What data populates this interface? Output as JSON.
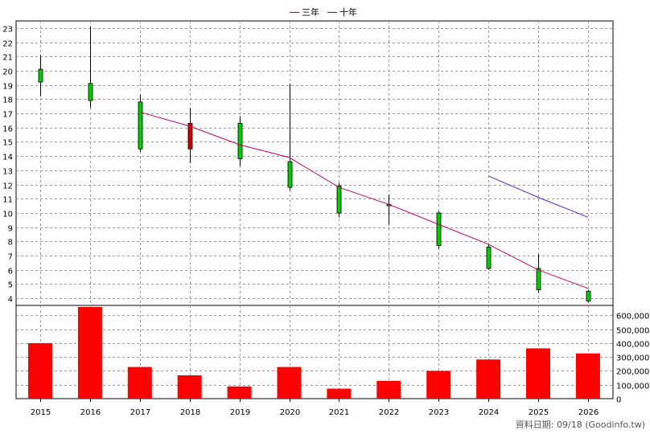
{
  "legend": [
    {
      "label": "三年",
      "color": "#cc0066"
    },
    {
      "label": "十年",
      "color": "#5522cc"
    }
  ],
  "footer": "資料日期: 09/18  (Goodinfo.tw)",
  "chart_data": [
    {
      "type": "candlestick",
      "categories": [
        "2015",
        "2016",
        "2017",
        "2018",
        "2019",
        "2020",
        "2021",
        "2022",
        "2023",
        "2024",
        "2025",
        "2026"
      ],
      "ylim": [
        3.5,
        23.5
      ],
      "yticks": [
        4,
        5,
        6,
        7,
        8,
        9,
        10,
        11,
        12,
        13,
        14,
        15,
        16,
        17,
        18,
        19,
        20,
        21,
        22,
        23
      ],
      "grid": true,
      "up_color": "#cc0000",
      "down_color": "#00cc00",
      "candles": [
        {
          "open": 20.1,
          "high": 21.1,
          "low": 18.2,
          "close": 19.2
        },
        {
          "open": 19.1,
          "high": 23.1,
          "low": 17.4,
          "close": 17.9
        },
        {
          "open": 17.8,
          "high": 18.3,
          "low": 14.3,
          "close": 14.5
        },
        {
          "open": 14.5,
          "high": 17.4,
          "low": 13.5,
          "close": 16.3
        },
        {
          "open": 16.3,
          "high": 16.8,
          "low": 13.3,
          "close": 13.8
        },
        {
          "open": 13.6,
          "high": 19.1,
          "low": 11.6,
          "close": 11.8
        },
        {
          "open": 11.9,
          "high": 12.1,
          "low": 9.7,
          "close": 10.0
        },
        {
          "open": 10.6,
          "high": 11.3,
          "low": 9.2,
          "close": 10.5
        },
        {
          "open": 10.0,
          "high": 10.1,
          "low": 7.5,
          "close": 7.7
        },
        {
          "open": 7.6,
          "high": 7.8,
          "low": 6.0,
          "close": 6.1
        },
        {
          "open": 6.1,
          "high": 7.1,
          "low": 4.4,
          "close": 4.6
        },
        {
          "open": 4.5,
          "high": 4.6,
          "low": 3.7,
          "close": 3.8
        }
      ],
      "series": [
        {
          "name": "三年",
          "color": "#cc0066",
          "values": [
            null,
            null,
            17.1,
            16.1,
            14.8,
            13.9,
            11.8,
            10.6,
            9.2,
            7.8,
            6.0,
            4.7
          ]
        },
        {
          "name": "十年",
          "color": "#5522cc",
          "values": [
            null,
            null,
            null,
            null,
            null,
            null,
            null,
            null,
            null,
            12.6,
            11.1,
            9.7
          ]
        }
      ]
    },
    {
      "type": "bar",
      "categories": [
        "2015",
        "2016",
        "2017",
        "2018",
        "2019",
        "2020",
        "2021",
        "2022",
        "2023",
        "2024",
        "2025",
        "2026"
      ],
      "values": [
        400000,
        660000,
        228000,
        168000,
        88000,
        228000,
        72000,
        128000,
        200000,
        282000,
        362000,
        326000
      ],
      "ylim": [
        0,
        660000
      ],
      "yticks": [
        0,
        100000,
        200000,
        300000,
        400000,
        500000,
        600000
      ],
      "ytick_labels": [
        "0",
        "100,000",
        "200,000",
        "300,000",
        "400,000",
        "500,000",
        "600,000"
      ],
      "bar_color": "#ff0000",
      "grid": true
    }
  ]
}
